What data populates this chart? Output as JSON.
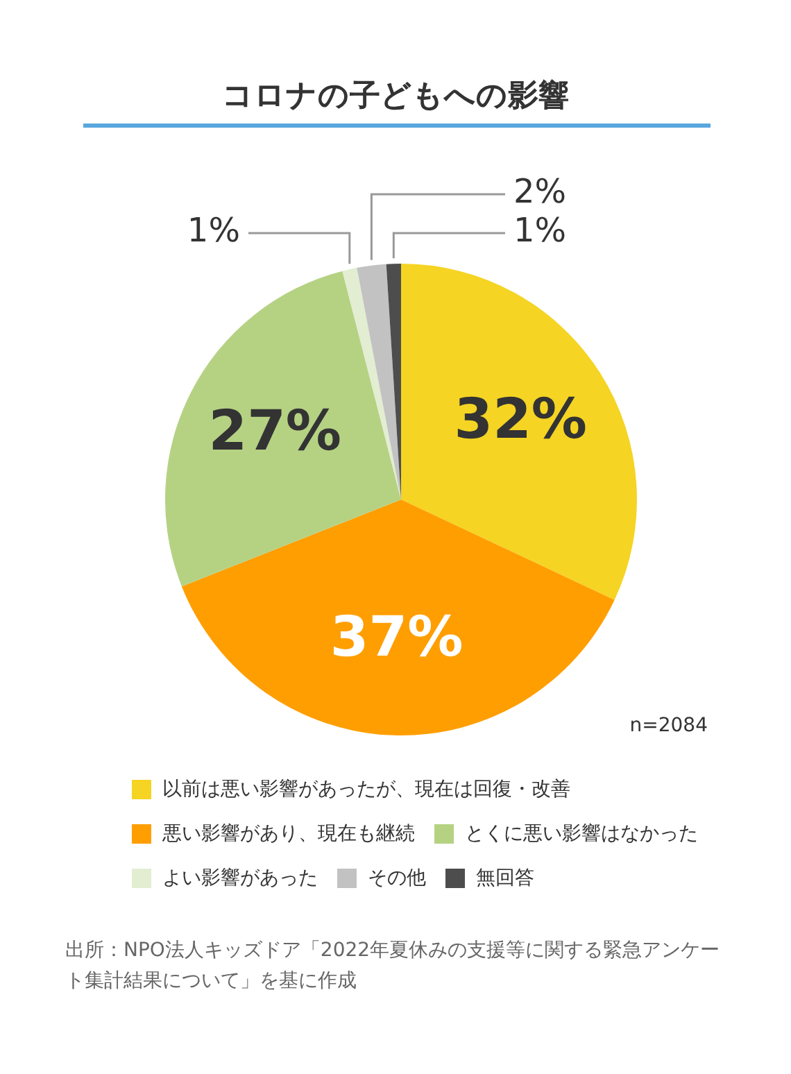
{
  "chart_data": {
    "type": "pie",
    "title": "コロナの子どもへの影響",
    "categories": [
      "以前は悪い影響があったが、現在は回復・改善",
      "悪い影響があり、現在も継続",
      "とくに悪い影響はなかった",
      "よい影響があった",
      "その他",
      "無回答"
    ],
    "values": [
      32,
      37,
      27,
      1,
      2,
      1
    ],
    "colors": [
      "#f5d423",
      "#ff9e00",
      "#b5d283",
      "#e2edd2",
      "#c2c2c2",
      "#4d4d4d"
    ],
    "value_labels": [
      "32%",
      "37%",
      "27%",
      "1%",
      "2%",
      "1%"
    ],
    "legend": "bottom",
    "annotations": [
      "n=2084",
      "出所：NPO法人キッズドア「2022年夏休みの支援等に関する緊急アンケート集計結果について」を基に作成"
    ]
  }
}
